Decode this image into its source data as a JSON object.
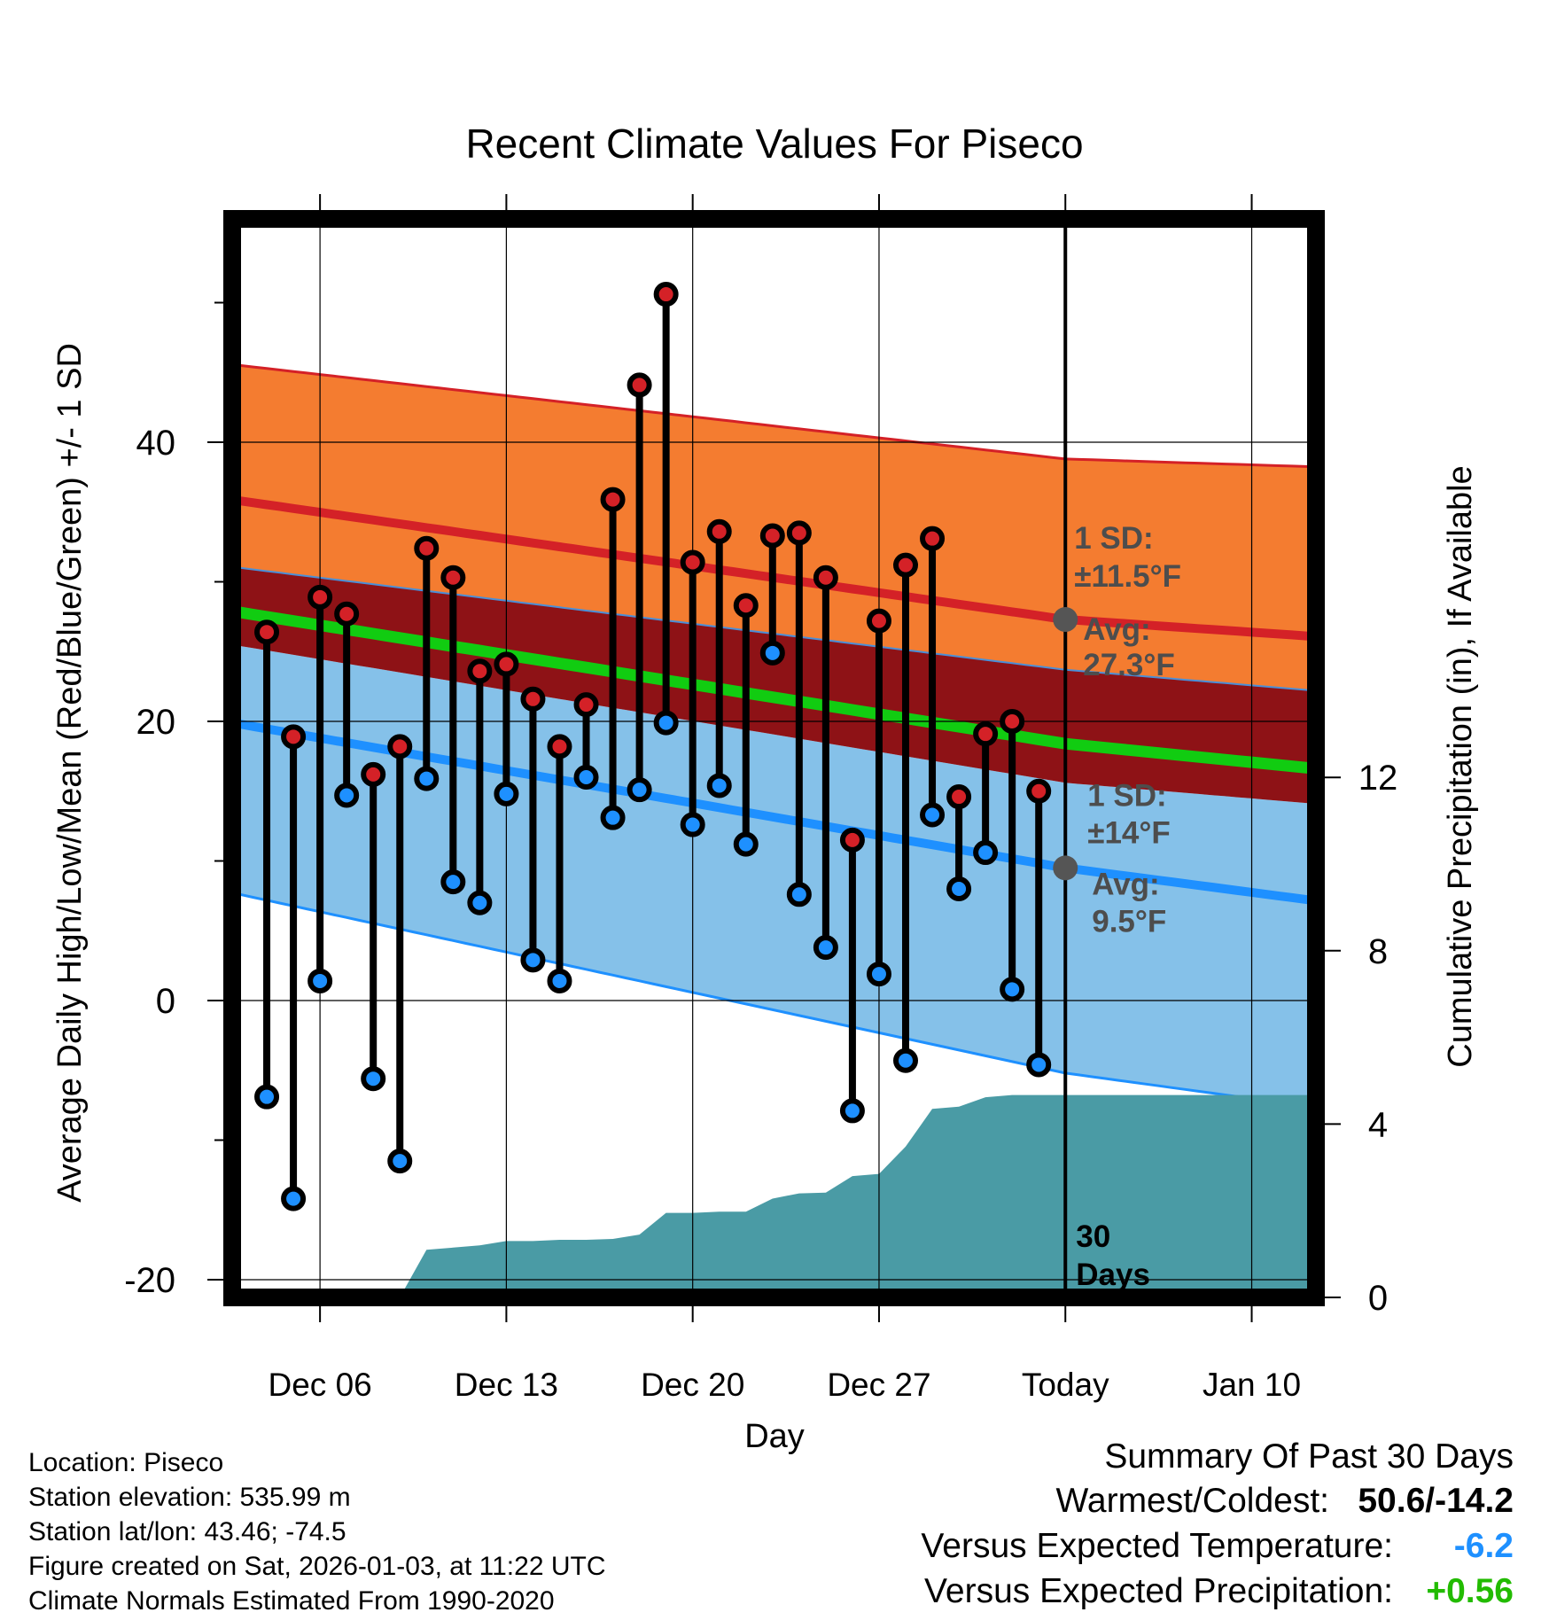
{
  "chart_data": {
    "type": "line",
    "title": "Recent Climate Values For Piseco",
    "xlabel": "Day",
    "ylabel": "Average Daily High/Low/Mean (Red/Blue/Green) +/- 1 SD",
    "y2label": "Cumulative Precipitation (in), If Available",
    "xlim": [
      0,
      41
    ],
    "ylim": [
      -22,
      56
    ],
    "y2lim": [
      0,
      24
    ],
    "x_ticks": [
      {
        "x": 3,
        "label": "Dec 06"
      },
      {
        "x": 10,
        "label": "Dec 13"
      },
      {
        "x": 17,
        "label": "Dec 20"
      },
      {
        "x": 24,
        "label": "Dec 27"
      },
      {
        "x": 31,
        "label": "Today"
      },
      {
        "x": 38,
        "label": "Jan 10"
      }
    ],
    "y_ticks": [
      {
        "v": -20,
        "label": "-20"
      },
      {
        "v": 0,
        "label": "0"
      },
      {
        "v": 20,
        "label": "20"
      },
      {
        "v": 40,
        "label": "40"
      }
    ],
    "y_minor_ticks": [
      -10,
      10,
      30,
      50
    ],
    "y2_ticks": [
      {
        "v": 0,
        "label": "0"
      },
      {
        "v": 4,
        "label": "4"
      },
      {
        "v": 8,
        "label": "8"
      },
      {
        "v": 12,
        "label": "12"
      }
    ],
    "today_x": 31,
    "today_label": "30 Days",
    "normals_x": [
      0,
      31,
      41
    ],
    "normal_high": [
      35.8,
      27.3,
      26.0
    ],
    "high_sd": 11.5,
    "normal_low": [
      19.8,
      9.5,
      7.0
    ],
    "low_sd": 14,
    "normal_mean": [
      27.8,
      18.4,
      16.5
    ],
    "high_upper": [
      45.5,
      38.8,
      38.2
    ],
    "high_lower": [
      31.0,
      23.7,
      22.1
    ],
    "low_upper": [
      25.4,
      15.6,
      14.0
    ],
    "low_lower": [
      7.6,
      -5.2,
      -7.8
    ],
    "series": [
      {
        "name": "Daily High",
        "color": "#d42127",
        "x": [
          1,
          2,
          3,
          4,
          5,
          6,
          7,
          8,
          9,
          10,
          11,
          12,
          13,
          14,
          15,
          16,
          17,
          18,
          19,
          20,
          21,
          22,
          23,
          24,
          25,
          26,
          27,
          28,
          29,
          30
        ],
        "values": [
          26.4,
          18.9,
          28.9,
          27.7,
          16.2,
          18.2,
          32.4,
          30.3,
          23.6,
          24.1,
          21.6,
          18.2,
          21.2,
          35.9,
          44.1,
          50.6,
          31.4,
          33.6,
          28.3,
          33.3,
          33.5,
          30.3,
          11.5,
          27.2,
          31.2,
          33.1,
          14.6,
          19.1,
          20.0,
          15.0
        ]
      },
      {
        "name": "Daily Low",
        "color": "#1e90ff",
        "x": [
          1,
          2,
          3,
          4,
          5,
          6,
          7,
          8,
          9,
          10,
          11,
          12,
          13,
          14,
          15,
          16,
          17,
          18,
          19,
          20,
          21,
          22,
          23,
          24,
          25,
          26,
          27,
          28,
          29,
          30
        ],
        "values": [
          -6.9,
          -14.2,
          1.4,
          14.7,
          -5.6,
          -11.5,
          15.9,
          8.5,
          7.0,
          14.8,
          2.9,
          1.4,
          16.0,
          13.1,
          15.1,
          19.9,
          12.6,
          15.4,
          11.2,
          24.9,
          7.6,
          3.8,
          -7.9,
          1.9,
          -4.3,
          13.3,
          8.0,
          10.6,
          0.8,
          -4.6
        ]
      }
    ],
    "precipitation": {
      "name": "Cumulative Precipitation",
      "color": "#4a9ba5",
      "x": [
        6,
        7,
        8,
        9,
        10,
        11,
        12,
        13,
        14,
        15,
        16,
        17,
        18,
        19,
        20,
        21,
        22,
        23,
        24,
        25,
        26,
        27,
        28,
        29,
        30,
        31,
        41
      ],
      "values": [
        0,
        1.1,
        1.15,
        1.2,
        1.3,
        1.3,
        1.33,
        1.33,
        1.35,
        1.45,
        1.95,
        1.95,
        1.98,
        1.98,
        2.28,
        2.4,
        2.42,
        2.8,
        2.85,
        3.48,
        4.35,
        4.4,
        4.62,
        4.67,
        4.67,
        4.67,
        4.67
      ]
    },
    "annotations": {
      "high_sd_label": "1 SD:",
      "high_sd_value": "±11.5°F",
      "high_avg_label": "Avg:",
      "high_avg_value": "27.3°F",
      "low_sd_label": "1 SD:",
      "low_sd_value": "±14°F",
      "low_avg_label": "Avg:",
      "low_avg_value": "9.5°F"
    }
  },
  "info": {
    "location": "Location: Piseco",
    "elevation": "Station elevation: 535.99 m",
    "latlon": "Station lat/lon: 43.46; -74.5",
    "created": "Figure created on Sat, 2026-01-03, at 11:22 UTC",
    "normals": "Climate Normals Estimated From 1990-2020"
  },
  "summary": {
    "heading": "Summary Of Past 30 Days",
    "warm_cold_label": "Warmest/Coldest:",
    "warm_cold_value": "50.6/-14.2",
    "temp_label": "Versus Expected Temperature:",
    "temp_value": "-6.2",
    "temp_color": "#1e90ff",
    "precip_label": "Versus Expected Precipitation:",
    "precip_value": "+0.56",
    "precip_color": "#22bb00"
  }
}
